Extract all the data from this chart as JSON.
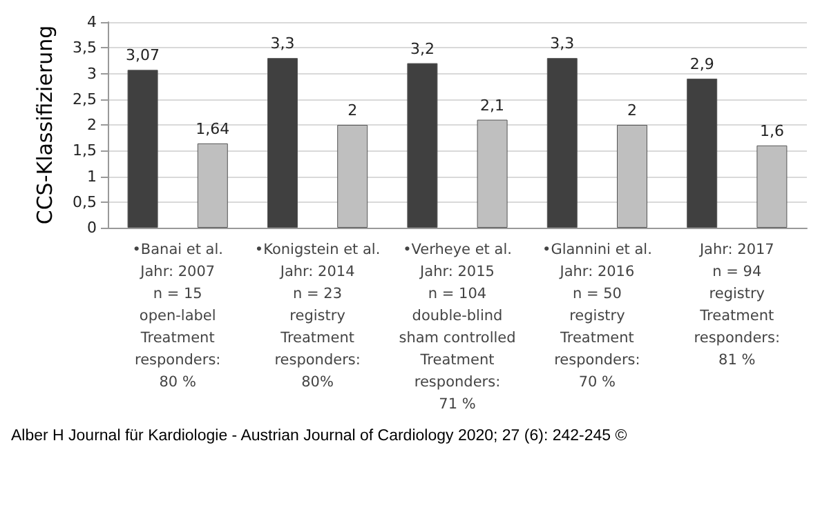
{
  "chart_data": {
    "type": "bar",
    "ylabel": "CCS-Klassifizierung",
    "categories": [
      "•Banai et al.\nJahr: 2007\nn = 15\nopen-label\nTreatment\nresponders:\n80 %",
      "•Konigstein et al.\nJahr: 2014\nn = 23\nregistry\nTreatment\nresponders:\n80%",
      "•Verheye et al.\nJahr: 2015\nn = 104\ndouble-blind\nsham controlled\nTreatment\nresponders:\n71 %",
      "•Glannini et al.\nJahr: 2016\nn = 50\nregistry\nTreatment\nresponders:\n70 %",
      "Jahr: 2017\nn = 94\nregistry\nTreatment\nresponders:\n81 %"
    ],
    "series": [
      {
        "color": "#404040",
        "values": [
          3.07,
          3.3,
          3.2,
          3.3,
          2.9
        ],
        "value_labels": [
          "3,07",
          "3,3",
          "3,2",
          "3,3",
          "2,9"
        ]
      },
      {
        "color": "#bfbfbf",
        "values": [
          1.64,
          2,
          2.1,
          2,
          1.6
        ],
        "value_labels": [
          "1,64",
          "2",
          "2,1",
          "2",
          "1,6"
        ]
      }
    ],
    "ylim": [
      0,
      4
    ],
    "yticks": [
      0,
      {
        "value": 0.5,
        "label": "0,5"
      },
      1,
      {
        "value": 1.5,
        "label": "1,5"
      },
      2,
      {
        "value": 2.5,
        "label": "2,5"
      },
      3,
      {
        "value": 3.5,
        "label": "3,5"
      },
      4
    ],
    "grid": "y",
    "annotations": [
      "Alber H Journal für Kardiologie - Austrian Journal of Cardiology 2020; 27 (6): 242-245 ©"
    ]
  }
}
